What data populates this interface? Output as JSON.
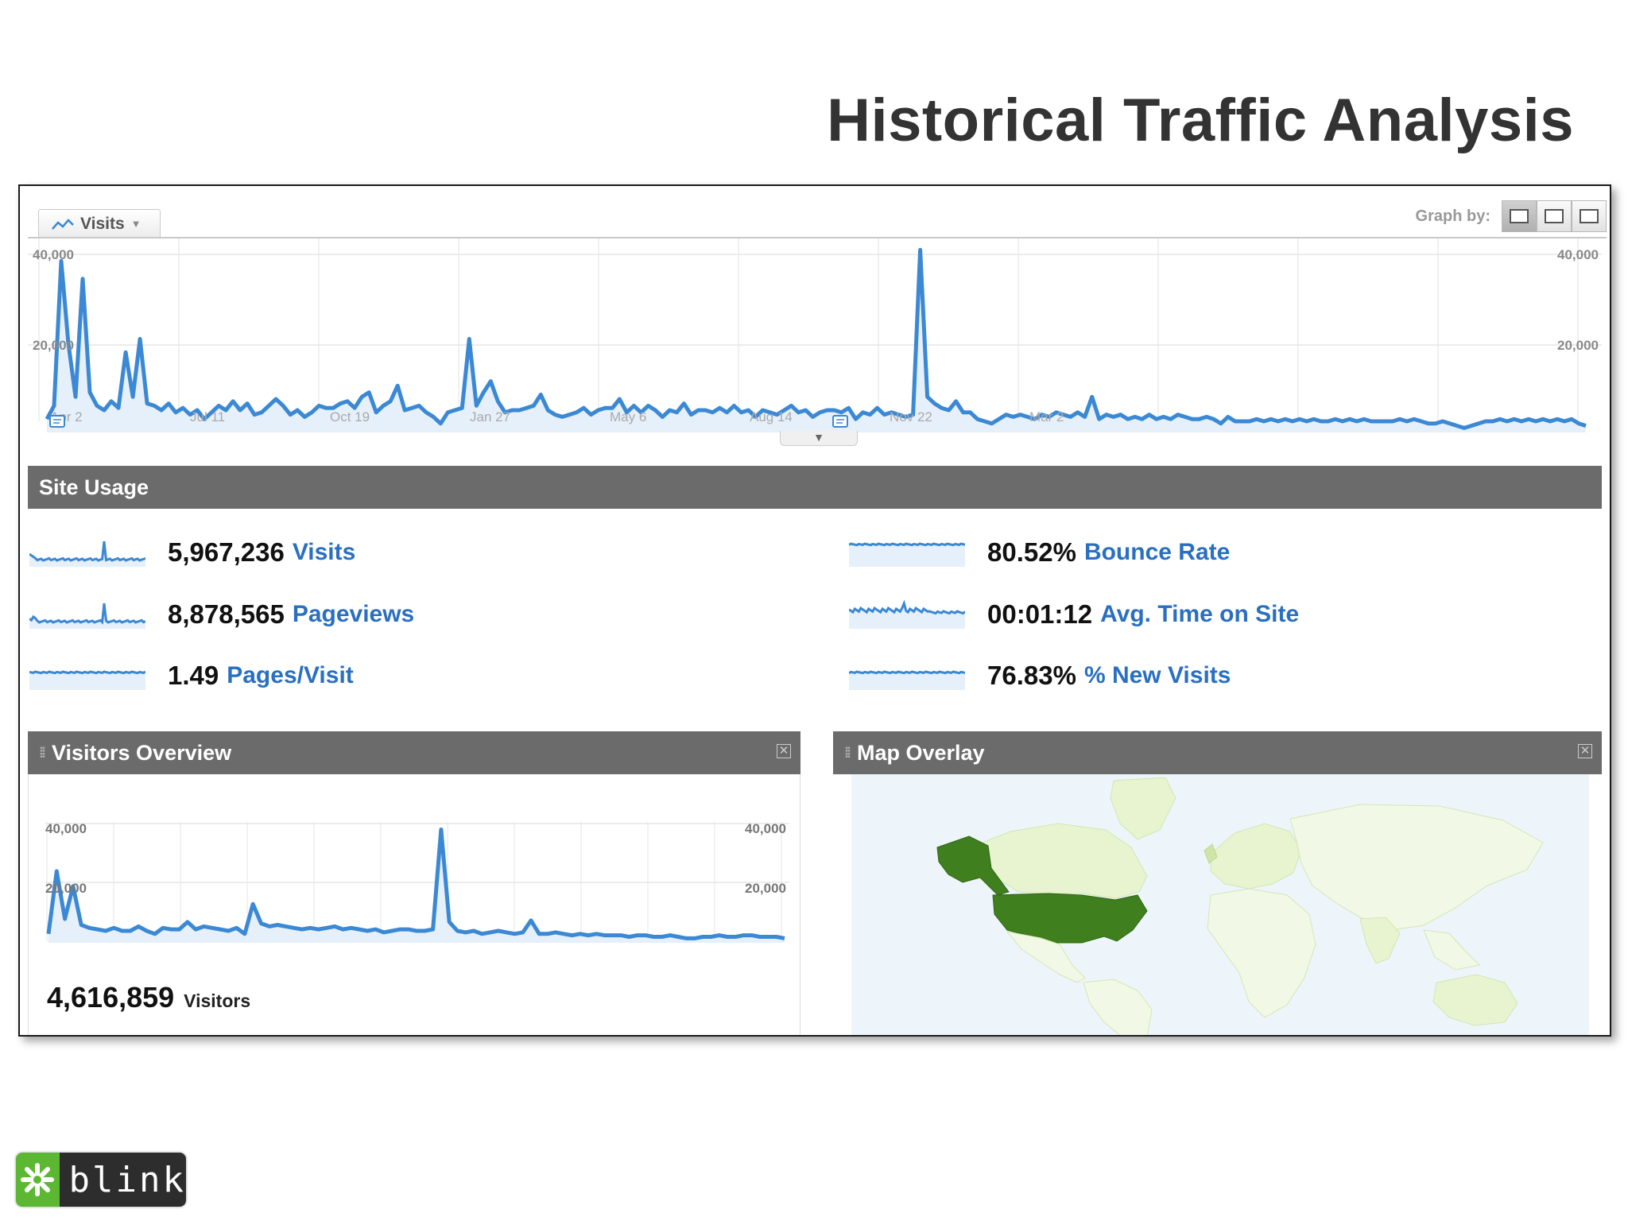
{
  "slide": {
    "title": "Historical Traffic Analysis"
  },
  "graph": {
    "tab_label": "Visits",
    "graph_by_label": "Graph by:",
    "y_left": [
      "40,000",
      "20,000"
    ],
    "y_right": [
      "40,000",
      "20,000"
    ],
    "x_labels": [
      "Apr 2",
      "Jul 11",
      "Oct 19",
      "Jan 27",
      "May 6",
      "Aug 14",
      "Nov 22",
      "Mar 2"
    ]
  },
  "chart_data": [
    {
      "type": "line",
      "title": "Visits",
      "ylim": [
        0,
        40000
      ],
      "x_ticks": [
        "Apr 2",
        "Jul 11",
        "Oct 19",
        "Jan 27",
        "May 6",
        "Aug 14",
        "Nov 22",
        "Mar 2"
      ],
      "series": [
        {
          "name": "Visits",
          "values": [
            3000,
            6000,
            38500,
            20000,
            8000,
            34500,
            9000,
            6000,
            5000,
            7000,
            5500,
            18000,
            8000,
            21000,
            6500,
            6000,
            5000,
            6500,
            4500,
            5500,
            4000,
            5000,
            3000,
            4500,
            6000,
            5000,
            7000,
            5000,
            6500,
            4000,
            4500,
            6000,
            7500,
            6000,
            4000,
            5000,
            3500,
            4500,
            6000,
            5500,
            5500,
            6500,
            7000,
            5500,
            8000,
            9000,
            4500,
            6000,
            7000,
            10500,
            5000,
            5500,
            6000,
            4500,
            3500,
            2000,
            4500,
            5000,
            5500,
            21000,
            6000,
            9000,
            11500,
            7000,
            4500,
            5000,
            5000,
            5500,
            6000,
            8500,
            5000,
            4000,
            3500,
            4000,
            4500,
            5500,
            4000,
            5000,
            5500,
            5500,
            7500,
            4500,
            6000,
            4500,
            6000,
            5000,
            3500,
            5000,
            4500,
            6500,
            4000,
            5000,
            5000,
            4500,
            5500,
            4500,
            6000,
            4500,
            5000,
            3500,
            5000,
            4500,
            4000,
            5000,
            6000,
            4500,
            5000,
            3500,
            4500,
            5000,
            5000,
            4500,
            5500,
            3000,
            4500,
            4000,
            5500,
            4000,
            4500,
            4000,
            3500,
            4000,
            41000,
            8000,
            6500,
            5500,
            5000,
            7000,
            4500,
            4500,
            3000,
            2500,
            2000,
            3000,
            4000,
            3500,
            4000,
            3500,
            3000,
            4000,
            3500,
            4500,
            4000,
            3500,
            4500,
            3500,
            8000,
            3000,
            4000,
            3500,
            4000,
            3000,
            3500,
            3000,
            4000,
            3000,
            3500,
            3000,
            4000,
            3500,
            3000,
            3000,
            3500,
            3000,
            2000,
            3500,
            2500,
            2500,
            2500,
            3000,
            2500,
            3000,
            2500,
            3000,
            2500,
            3000,
            2500,
            3000,
            2500,
            2500,
            3000,
            2500,
            3000,
            2500,
            3000,
            2500,
            2500,
            2500,
            2500,
            3000,
            2500,
            3000,
            2500,
            2000,
            2000,
            2500,
            2000,
            1500,
            1000,
            1500,
            2000,
            2500,
            2500,
            3000,
            2500,
            3000,
            2500,
            3000,
            2500,
            3000,
            2500,
            3000,
            2500,
            3000,
            2000,
            1500
          ]
        }
      ]
    },
    {
      "type": "line",
      "title": "Visitors Overview",
      "ylim": [
        0,
        40000
      ],
      "series": [
        {
          "name": "Visitors",
          "values": [
            3000,
            24000,
            8000,
            19000,
            6000,
            5000,
            4500,
            4000,
            5000,
            4000,
            4000,
            5500,
            4000,
            3000,
            5000,
            4500,
            4500,
            7000,
            4500,
            5500,
            5000,
            4500,
            4000,
            5000,
            3000,
            13000,
            6500,
            5500,
            6000,
            5500,
            5000,
            4500,
            5000,
            4500,
            5000,
            5500,
            4500,
            5000,
            4500,
            4000,
            4500,
            3500,
            4000,
            4500,
            4500,
            4000,
            4000,
            4500,
            38000,
            7000,
            4000,
            3500,
            4000,
            3000,
            3500,
            4000,
            3500,
            3000,
            3500,
            7500,
            3000,
            3000,
            3500,
            3000,
            2500,
            3000,
            2500,
            3000,
            2500,
            2500,
            2500,
            2000,
            2500,
            2500,
            2000,
            2000,
            2500,
            2000,
            1500,
            1500,
            2000,
            2000,
            2500,
            2000,
            2000,
            2500,
            2500,
            2000,
            2000,
            2000,
            1500
          ]
        }
      ]
    }
  ],
  "site_usage": {
    "title": "Site Usage",
    "metrics": [
      {
        "value": "5,967,236",
        "label": "Visits"
      },
      {
        "value": "8,878,565",
        "label": "Pageviews"
      },
      {
        "value": "1.49",
        "label": "Pages/Visit"
      },
      {
        "value": "80.52%",
        "label": "Bounce Rate"
      },
      {
        "value": "00:01:12",
        "label": "Avg. Time on Site"
      },
      {
        "value": "76.83%",
        "label": "% New Visits"
      }
    ]
  },
  "visitors_overview": {
    "title": "Visitors Overview",
    "y_left": [
      "40,000",
      "20,000"
    ],
    "y_right": [
      "40,000",
      "20,000"
    ],
    "total_value": "4,616,859",
    "total_label": "Visitors"
  },
  "map_overlay": {
    "title": "Map Overlay"
  },
  "logo": {
    "text": "blink"
  },
  "colors": {
    "series": "#3b88d4",
    "fill": "#e6f0fa",
    "bar": "#6b6b6b",
    "link": "#2a6fc0",
    "map_dark": "#3f7f1e",
    "map_light": "#e8f3cf"
  }
}
